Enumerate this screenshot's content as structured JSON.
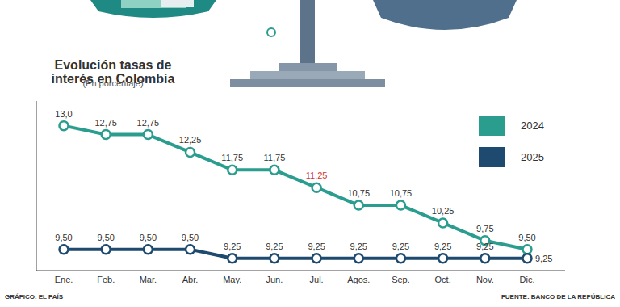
{
  "chart_data": {
    "type": "line",
    "title": "Evolución tasas de interés en Colombia",
    "subtitle": "(En porcentaje)",
    "credit": "GRÁFICO: EL PAÍS",
    "source": "FUENTE: BANCO DE LA REPÚBLICA",
    "categories": [
      "Ene.",
      "Feb.",
      "Mar.",
      "Abr.",
      "May.",
      "Jun.",
      "Jul.",
      "Agos.",
      "Sep.",
      "Oct.",
      "Nov.",
      "Dic."
    ],
    "series": [
      {
        "name": "2024",
        "color": "#2a9d8f",
        "marker": "circle",
        "values": [
          13.0,
          12.75,
          12.75,
          12.25,
          11.75,
          11.75,
          11.25,
          10.75,
          10.75,
          10.25,
          9.75,
          9.5
        ],
        "value_labels": [
          "13,0",
          "12,75",
          "12,75",
          "12,25",
          "11,75",
          "11,75",
          "11,25",
          "10,75",
          "10,75",
          "10,25",
          "9,75",
          "9,50"
        ]
      },
      {
        "name": "2025",
        "color": "#1d4a6e",
        "marker": "circle",
        "values": [
          9.5,
          9.5,
          9.5,
          9.5,
          9.25,
          9.25,
          9.25,
          9.25,
          9.25,
          9.25,
          9.25,
          9.25
        ],
        "value_labels": [
          "9,50",
          "9,50",
          "9,50",
          "9,50",
          "9,25",
          "9,25",
          "9,25",
          "9,25",
          "9,25",
          "9,25",
          "9,25",
          "9,25"
        ]
      }
    ],
    "ylim": [
      8.9,
      13.7
    ],
    "tick_labels": "x",
    "data_labels": true,
    "grid": false,
    "legend": "upper right"
  }
}
